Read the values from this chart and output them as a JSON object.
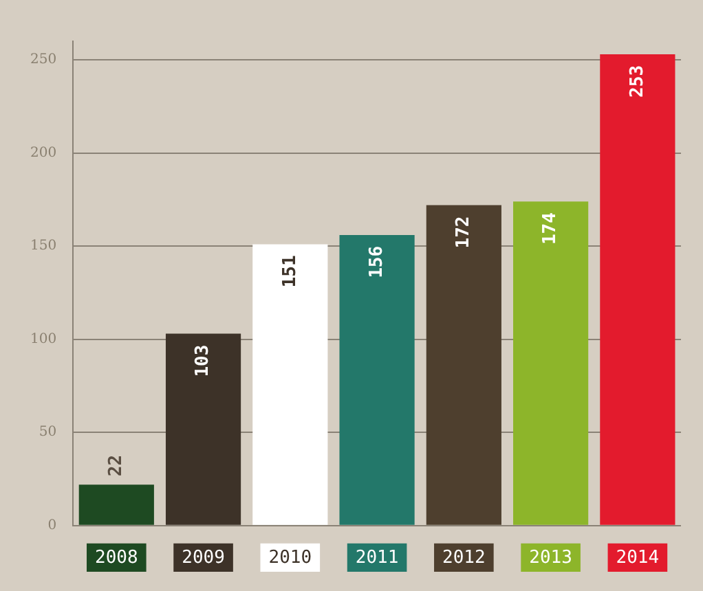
{
  "chart_data": {
    "type": "bar",
    "categories": [
      "2008",
      "2009",
      "2010",
      "2011",
      "2012",
      "2013",
      "2014"
    ],
    "values": [
      22,
      103,
      151,
      156,
      172,
      174,
      253
    ],
    "colors": [
      "#1e4a22",
      "#3d3228",
      "#ffffff",
      "#23786a",
      "#4e3f2e",
      "#8db52a",
      "#e31b2d"
    ],
    "ylim": [
      0,
      260
    ],
    "yticks": [
      0,
      50,
      100,
      150,
      200,
      250
    ],
    "grid": "y",
    "data_labels": true,
    "legend": false
  }
}
